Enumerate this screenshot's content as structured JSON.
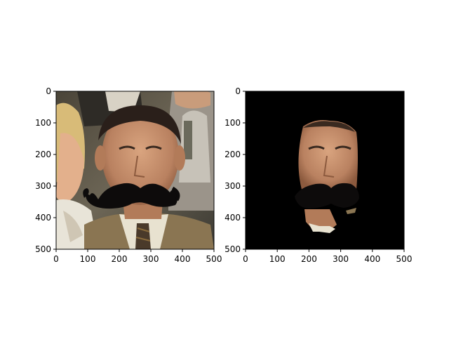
{
  "chart_data": [
    {
      "type": "image",
      "xlim": [
        0,
        500
      ],
      "ylim": [
        500,
        0
      ],
      "xticks": [
        0,
        100,
        200,
        300,
        400,
        500
      ],
      "yticks": [
        0,
        100,
        200,
        300,
        400,
        500
      ],
      "xtick_labels": [
        "0",
        "100",
        "200",
        "300",
        "400",
        "500"
      ],
      "ytick_labels": [
        "0",
        "100",
        "200",
        "300",
        "400",
        "500"
      ],
      "content": "photo-with-mustache",
      "grid": false
    },
    {
      "type": "image",
      "xlim": [
        0,
        500
      ],
      "ylim": [
        500,
        0
      ],
      "xticks": [
        0,
        100,
        200,
        300,
        400,
        500
      ],
      "yticks": [
        0,
        100,
        200,
        300,
        400,
        500
      ],
      "xtick_labels": [
        "0",
        "100",
        "200",
        "300",
        "400",
        "500"
      ],
      "ytick_labels": [
        "0",
        "100",
        "200",
        "300",
        "400",
        "500"
      ],
      "content": "segmented-face-on-black",
      "grid": false
    }
  ],
  "colors": {
    "mask_background": "#000000",
    "mustache": "#0d0b0b",
    "skin": "#c9936e",
    "suit": "#8a7552",
    "shirt": "#e8e2d0"
  }
}
